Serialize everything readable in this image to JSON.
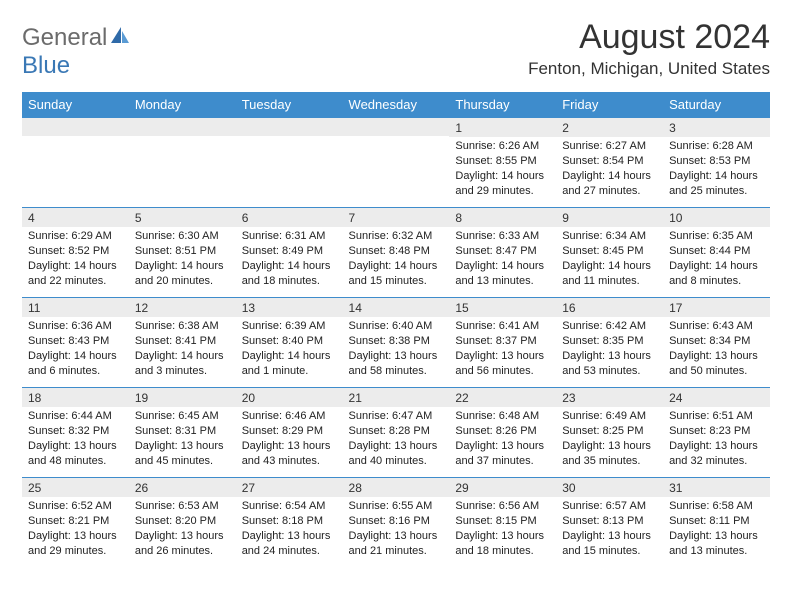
{
  "logo": {
    "text1": "General",
    "text2": "Blue"
  },
  "title": "August 2024",
  "location": "Fenton, Michigan, United States",
  "colors": {
    "header_bg": "#3e8ccc",
    "header_fg": "#ffffff",
    "daynum_bg": "#ececec",
    "border": "#3e8ccc",
    "logo_gray": "#6b6b6b",
    "logo_blue": "#3a78b5"
  },
  "daylabels": [
    "Sunday",
    "Monday",
    "Tuesday",
    "Wednesday",
    "Thursday",
    "Friday",
    "Saturday"
  ],
  "weeks": [
    [
      {
        "n": "",
        "sr": "",
        "ss": "",
        "dl": ""
      },
      {
        "n": "",
        "sr": "",
        "ss": "",
        "dl": ""
      },
      {
        "n": "",
        "sr": "",
        "ss": "",
        "dl": ""
      },
      {
        "n": "",
        "sr": "",
        "ss": "",
        "dl": ""
      },
      {
        "n": "1",
        "sr": "Sunrise: 6:26 AM",
        "ss": "Sunset: 8:55 PM",
        "dl": "Daylight: 14 hours and 29 minutes."
      },
      {
        "n": "2",
        "sr": "Sunrise: 6:27 AM",
        "ss": "Sunset: 8:54 PM",
        "dl": "Daylight: 14 hours and 27 minutes."
      },
      {
        "n": "3",
        "sr": "Sunrise: 6:28 AM",
        "ss": "Sunset: 8:53 PM",
        "dl": "Daylight: 14 hours and 25 minutes."
      }
    ],
    [
      {
        "n": "4",
        "sr": "Sunrise: 6:29 AM",
        "ss": "Sunset: 8:52 PM",
        "dl": "Daylight: 14 hours and 22 minutes."
      },
      {
        "n": "5",
        "sr": "Sunrise: 6:30 AM",
        "ss": "Sunset: 8:51 PM",
        "dl": "Daylight: 14 hours and 20 minutes."
      },
      {
        "n": "6",
        "sr": "Sunrise: 6:31 AM",
        "ss": "Sunset: 8:49 PM",
        "dl": "Daylight: 14 hours and 18 minutes."
      },
      {
        "n": "7",
        "sr": "Sunrise: 6:32 AM",
        "ss": "Sunset: 8:48 PM",
        "dl": "Daylight: 14 hours and 15 minutes."
      },
      {
        "n": "8",
        "sr": "Sunrise: 6:33 AM",
        "ss": "Sunset: 8:47 PM",
        "dl": "Daylight: 14 hours and 13 minutes."
      },
      {
        "n": "9",
        "sr": "Sunrise: 6:34 AM",
        "ss": "Sunset: 8:45 PM",
        "dl": "Daylight: 14 hours and 11 minutes."
      },
      {
        "n": "10",
        "sr": "Sunrise: 6:35 AM",
        "ss": "Sunset: 8:44 PM",
        "dl": "Daylight: 14 hours and 8 minutes."
      }
    ],
    [
      {
        "n": "11",
        "sr": "Sunrise: 6:36 AM",
        "ss": "Sunset: 8:43 PM",
        "dl": "Daylight: 14 hours and 6 minutes."
      },
      {
        "n": "12",
        "sr": "Sunrise: 6:38 AM",
        "ss": "Sunset: 8:41 PM",
        "dl": "Daylight: 14 hours and 3 minutes."
      },
      {
        "n": "13",
        "sr": "Sunrise: 6:39 AM",
        "ss": "Sunset: 8:40 PM",
        "dl": "Daylight: 14 hours and 1 minute."
      },
      {
        "n": "14",
        "sr": "Sunrise: 6:40 AM",
        "ss": "Sunset: 8:38 PM",
        "dl": "Daylight: 13 hours and 58 minutes."
      },
      {
        "n": "15",
        "sr": "Sunrise: 6:41 AM",
        "ss": "Sunset: 8:37 PM",
        "dl": "Daylight: 13 hours and 56 minutes."
      },
      {
        "n": "16",
        "sr": "Sunrise: 6:42 AM",
        "ss": "Sunset: 8:35 PM",
        "dl": "Daylight: 13 hours and 53 minutes."
      },
      {
        "n": "17",
        "sr": "Sunrise: 6:43 AM",
        "ss": "Sunset: 8:34 PM",
        "dl": "Daylight: 13 hours and 50 minutes."
      }
    ],
    [
      {
        "n": "18",
        "sr": "Sunrise: 6:44 AM",
        "ss": "Sunset: 8:32 PM",
        "dl": "Daylight: 13 hours and 48 minutes."
      },
      {
        "n": "19",
        "sr": "Sunrise: 6:45 AM",
        "ss": "Sunset: 8:31 PM",
        "dl": "Daylight: 13 hours and 45 minutes."
      },
      {
        "n": "20",
        "sr": "Sunrise: 6:46 AM",
        "ss": "Sunset: 8:29 PM",
        "dl": "Daylight: 13 hours and 43 minutes."
      },
      {
        "n": "21",
        "sr": "Sunrise: 6:47 AM",
        "ss": "Sunset: 8:28 PM",
        "dl": "Daylight: 13 hours and 40 minutes."
      },
      {
        "n": "22",
        "sr": "Sunrise: 6:48 AM",
        "ss": "Sunset: 8:26 PM",
        "dl": "Daylight: 13 hours and 37 minutes."
      },
      {
        "n": "23",
        "sr": "Sunrise: 6:49 AM",
        "ss": "Sunset: 8:25 PM",
        "dl": "Daylight: 13 hours and 35 minutes."
      },
      {
        "n": "24",
        "sr": "Sunrise: 6:51 AM",
        "ss": "Sunset: 8:23 PM",
        "dl": "Daylight: 13 hours and 32 minutes."
      }
    ],
    [
      {
        "n": "25",
        "sr": "Sunrise: 6:52 AM",
        "ss": "Sunset: 8:21 PM",
        "dl": "Daylight: 13 hours and 29 minutes."
      },
      {
        "n": "26",
        "sr": "Sunrise: 6:53 AM",
        "ss": "Sunset: 8:20 PM",
        "dl": "Daylight: 13 hours and 26 minutes."
      },
      {
        "n": "27",
        "sr": "Sunrise: 6:54 AM",
        "ss": "Sunset: 8:18 PM",
        "dl": "Daylight: 13 hours and 24 minutes."
      },
      {
        "n": "28",
        "sr": "Sunrise: 6:55 AM",
        "ss": "Sunset: 8:16 PM",
        "dl": "Daylight: 13 hours and 21 minutes."
      },
      {
        "n": "29",
        "sr": "Sunrise: 6:56 AM",
        "ss": "Sunset: 8:15 PM",
        "dl": "Daylight: 13 hours and 18 minutes."
      },
      {
        "n": "30",
        "sr": "Sunrise: 6:57 AM",
        "ss": "Sunset: 8:13 PM",
        "dl": "Daylight: 13 hours and 15 minutes."
      },
      {
        "n": "31",
        "sr": "Sunrise: 6:58 AM",
        "ss": "Sunset: 8:11 PM",
        "dl": "Daylight: 13 hours and 13 minutes."
      }
    ]
  ]
}
